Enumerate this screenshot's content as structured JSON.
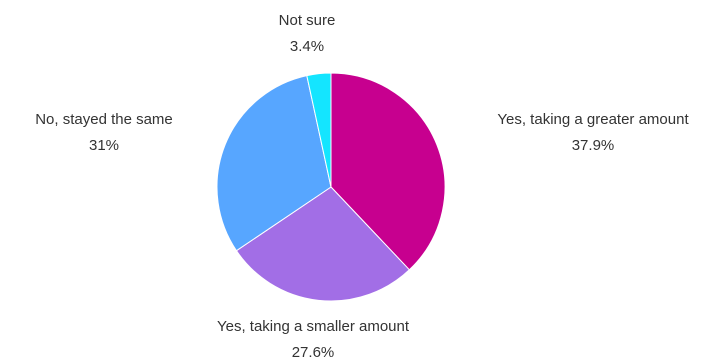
{
  "chart_data": {
    "type": "pie",
    "title": "",
    "slices": [
      {
        "label": "Yes, taking a greater amount",
        "value": 37.9,
        "value_label": "37.9%",
        "color": "#C7008F"
      },
      {
        "label": "Yes, taking a smaller amount",
        "value": 27.6,
        "value_label": "27.6%",
        "color": "#A26EE6"
      },
      {
        "label": "No, stayed the same",
        "value": 31,
        "value_label": "31%",
        "color": "#57A6FF"
      },
      {
        "label": "Not sure",
        "value": 3.4,
        "value_label": "3.4%",
        "color": "#14E5FF"
      }
    ]
  }
}
